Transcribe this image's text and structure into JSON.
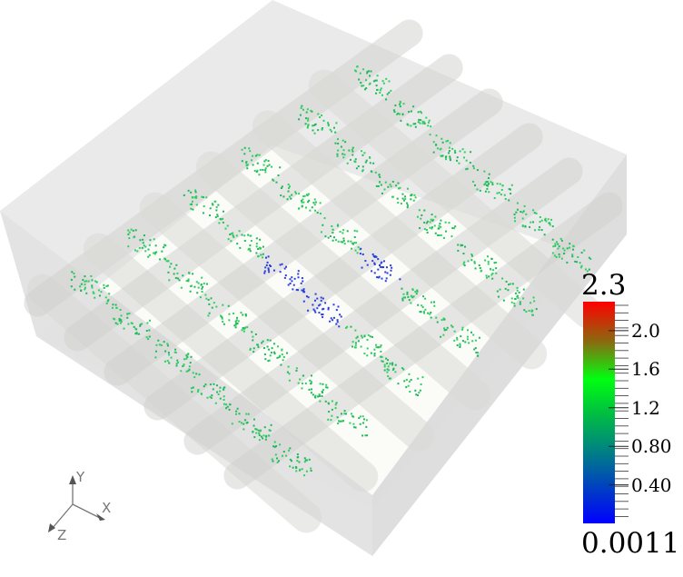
{
  "render_view": {
    "background": "#ffffff",
    "box_color": "#e4e4e4",
    "tube_color": "#d8d8d6"
  },
  "color_bar": {
    "max_label": "2.3",
    "min_label": "0.0011",
    "range": [
      0.0011,
      2.3
    ],
    "tick_labels": [
      "2.0",
      "1.6",
      "1.2",
      "0.80",
      "0.40"
    ],
    "tick_values": [
      2.0,
      1.6,
      1.2,
      0.8,
      0.4
    ],
    "colormap": [
      "#0000ff",
      "#00a060",
      "#00ff10",
      "#8a6a10",
      "#ff0000"
    ]
  },
  "orientation_axes": {
    "x_label": "X",
    "y_label": "Y",
    "z_label": "Z"
  }
}
